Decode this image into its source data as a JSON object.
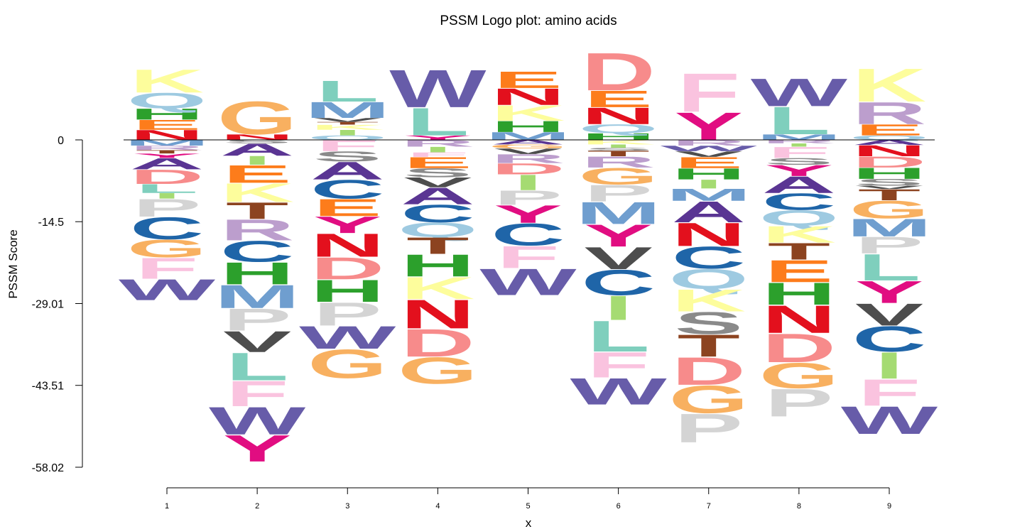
{
  "chart_data": {
    "type": "logo",
    "title": "PSSM Logo plot: amino acids",
    "xlabel": "x",
    "ylabel": "PSSM  Score",
    "x": [
      1,
      2,
      3,
      4,
      5,
      6,
      7,
      8,
      9
    ],
    "x_tick_labels": [
      "1",
      "2",
      "3",
      "4",
      "5",
      "6",
      "7",
      "8",
      "9"
    ],
    "y_ticks": [
      0,
      -14.5,
      -29.01,
      -43.51,
      -58.02
    ],
    "y_tick_labels": [
      "0",
      "-14.5",
      "-29.01",
      "-43.51",
      "-58.02"
    ],
    "ylim": [
      -58.02,
      14
    ],
    "colors": {
      "K": "#fdfd9c",
      "Q": "#9ecae1",
      "H": "#2ca02c",
      "E": "#fd7c1b",
      "N": "#e3101d",
      "R": "#bc9ecd",
      "M": "#6f9ecf",
      "A": "#5a3593",
      "D": "#f78b8b",
      "T": "#8c4320",
      "I": "#a5db72",
      "P": "#d4d4d4",
      "C": "#1f65a8",
      "G": "#f8b060",
      "F": "#fac3df",
      "W": "#675ca9",
      "Y": "#e10d81",
      "L": "#7fcfbd",
      "S": "#8a8a8a",
      "V": "#4d4d4d"
    },
    "positions": [
      {
        "x": 1,
        "positive": [
          [
            "N",
            1.8
          ],
          [
            "E",
            1.8
          ],
          [
            "H",
            2.0
          ],
          [
            "Q",
            2.8
          ],
          [
            "K",
            4.2
          ]
        ],
        "negative": [
          [
            "M",
            1.0
          ],
          [
            "R",
            0.8
          ],
          [
            "T",
            0.6
          ],
          [
            "Y",
            0.8
          ],
          [
            "A",
            2.0
          ],
          [
            "D",
            2.6
          ],
          [
            "L",
            1.6
          ],
          [
            "I",
            1.0
          ],
          [
            "P",
            3.2
          ],
          [
            "C",
            4.0
          ],
          [
            "G",
            3.2
          ],
          [
            "F",
            3.8
          ],
          [
            "W",
            3.8
          ]
        ]
      },
      {
        "x": 2,
        "positive": [
          [
            "N",
            1.0
          ],
          [
            "G",
            6.0
          ]
        ],
        "negative": [
          [
            "S",
            0.6
          ],
          [
            "A",
            2.2
          ],
          [
            "I",
            1.6
          ],
          [
            "E",
            3.2
          ],
          [
            "K",
            3.4
          ],
          [
            "T",
            3.0
          ],
          [
            "R",
            3.8
          ],
          [
            "C",
            3.8
          ],
          [
            "H",
            4.0
          ],
          [
            "M",
            4.2
          ],
          [
            "P",
            4.0
          ],
          [
            "V",
            3.8
          ],
          [
            "L",
            5.0
          ],
          [
            "F",
            4.6
          ],
          [
            "W",
            5.0
          ],
          [
            "Y",
            4.8
          ]
        ]
      },
      {
        "x": 3,
        "positive": [
          [
            "Q",
            0.8
          ],
          [
            "I",
            1.0
          ],
          [
            "K",
            0.9
          ],
          [
            "T",
            0.5
          ],
          [
            "V",
            0.7
          ],
          [
            "M",
            2.9
          ],
          [
            "L",
            3.8
          ]
        ],
        "negative": [
          [
            "F",
            2.0
          ],
          [
            "S",
            1.8
          ],
          [
            "A",
            3.2
          ],
          [
            "C",
            3.4
          ],
          [
            "E",
            3.1
          ],
          [
            "Y",
            3.0
          ],
          [
            "N",
            4.2
          ],
          [
            "D",
            4.0
          ],
          [
            "H",
            4.0
          ],
          [
            "P",
            4.2
          ],
          [
            "W",
            4.1
          ],
          [
            "G",
            5.2
          ]
        ]
      },
      {
        "x": 4,
        "positive": [
          [
            "Y",
            0.8
          ],
          [
            "L",
            5.0
          ],
          [
            "W",
            6.8
          ]
        ],
        "negative": [
          [
            "R",
            1.2
          ],
          [
            "I",
            1.0
          ],
          [
            "F",
            0.8
          ],
          [
            "E",
            2.0
          ],
          [
            "S",
            1.6
          ],
          [
            "V",
            1.8
          ],
          [
            "A",
            3.0
          ],
          [
            "C",
            3.2
          ],
          [
            "Q",
            2.6
          ],
          [
            "T",
            3.0
          ],
          [
            "H",
            4.0
          ],
          [
            "K",
            4.0
          ],
          [
            "N",
            5.2
          ],
          [
            "D",
            5.0
          ],
          [
            "G",
            4.8
          ]
        ]
      },
      {
        "x": 5,
        "positive": [
          [
            "M",
            1.4
          ],
          [
            "H",
            2.0
          ],
          [
            "K",
            2.8
          ],
          [
            "N",
            3.0
          ],
          [
            "E",
            3.0
          ]
        ],
        "negative": [
          [
            "A",
            0.8
          ],
          [
            "G",
            0.7
          ],
          [
            "V",
            1.0
          ],
          [
            "R",
            1.6
          ],
          [
            "D",
            2.0
          ],
          [
            "I",
            2.8
          ],
          [
            "P",
            2.6
          ],
          [
            "Y",
            3.2
          ],
          [
            "C",
            4.0
          ],
          [
            "F",
            4.0
          ],
          [
            "W",
            4.8
          ]
        ]
      },
      {
        "x": 6,
        "positive": [
          [
            "H",
            1.2
          ],
          [
            "Q",
            1.6
          ],
          [
            "N",
            3.0
          ],
          [
            "E",
            3.0
          ],
          [
            "D",
            6.8
          ]
        ],
        "negative": [
          [
            "K",
            0.8
          ],
          [
            "I",
            0.6
          ],
          [
            "S",
            0.5
          ],
          [
            "T",
            1.0
          ],
          [
            "R",
            2.0
          ],
          [
            "G",
            3.0
          ],
          [
            "P",
            3.0
          ],
          [
            "M",
            4.0
          ],
          [
            "Y",
            4.0
          ],
          [
            "V",
            4.0
          ],
          [
            "C",
            4.6
          ],
          [
            "I2",
            4.4
          ],
          [
            "L",
            5.6
          ],
          [
            "F",
            4.6
          ],
          [
            "W",
            4.8
          ]
        ]
      },
      {
        "x": 7,
        "positive": [
          [
            "Y",
            5.0
          ],
          [
            "F",
            7.0
          ]
        ],
        "negative": [
          [
            "R",
            1.0
          ],
          [
            "W",
            1.0
          ],
          [
            "V",
            1.0
          ],
          [
            "E",
            2.0
          ],
          [
            "H",
            2.0
          ],
          [
            "I",
            1.6
          ],
          [
            "M",
            2.2
          ],
          [
            "A",
            3.8
          ],
          [
            "N",
            4.2
          ],
          [
            "C",
            4.0
          ],
          [
            "Q",
            3.6
          ],
          [
            "K",
            4.0
          ],
          [
            "S",
            4.0
          ],
          [
            "T",
            4.0
          ],
          [
            "D",
            5.0
          ],
          [
            "G",
            5.0
          ],
          [
            "P",
            5.2
          ]
        ]
      },
      {
        "x": 8,
        "positive": [
          [
            "M",
            1.0
          ],
          [
            "L",
            5.0
          ],
          [
            "W",
            5.0
          ]
        ],
        "negative": [
          [
            "R",
            0.6
          ],
          [
            "I",
            0.6
          ],
          [
            "F",
            2.0
          ],
          [
            "S",
            1.2
          ],
          [
            "Y",
            2.0
          ],
          [
            "A",
            3.0
          ],
          [
            "C",
            3.0
          ],
          [
            "Q",
            2.8
          ],
          [
            "K",
            3.0
          ],
          [
            "T",
            3.0
          ],
          [
            "E",
            4.0
          ],
          [
            "H",
            4.0
          ],
          [
            "N",
            5.0
          ],
          [
            "D",
            5.2
          ],
          [
            "G",
            4.6
          ],
          [
            "P",
            5.0
          ]
        ]
      },
      {
        "x": 9,
        "positive": [
          [
            "Q",
            0.8
          ],
          [
            "E",
            2.0
          ],
          [
            "R",
            4.0
          ],
          [
            "K",
            6.0
          ]
        ],
        "negative": [
          [
            "A",
            0.9
          ],
          [
            "N",
            2.0
          ],
          [
            "D",
            2.0
          ],
          [
            "H",
            2.0
          ],
          [
            "S",
            1.2
          ],
          [
            "V",
            0.6
          ],
          [
            "T",
            2.0
          ],
          [
            "G",
            3.2
          ],
          [
            "M",
            3.2
          ],
          [
            "P",
            3.0
          ],
          [
            "L",
            4.8
          ],
          [
            "Y",
            4.0
          ],
          [
            "V2",
            4.0
          ],
          [
            "C",
            4.6
          ],
          [
            "I",
            4.8
          ],
          [
            "F",
            4.8
          ],
          [
            "W",
            5.0
          ]
        ]
      }
    ]
  }
}
